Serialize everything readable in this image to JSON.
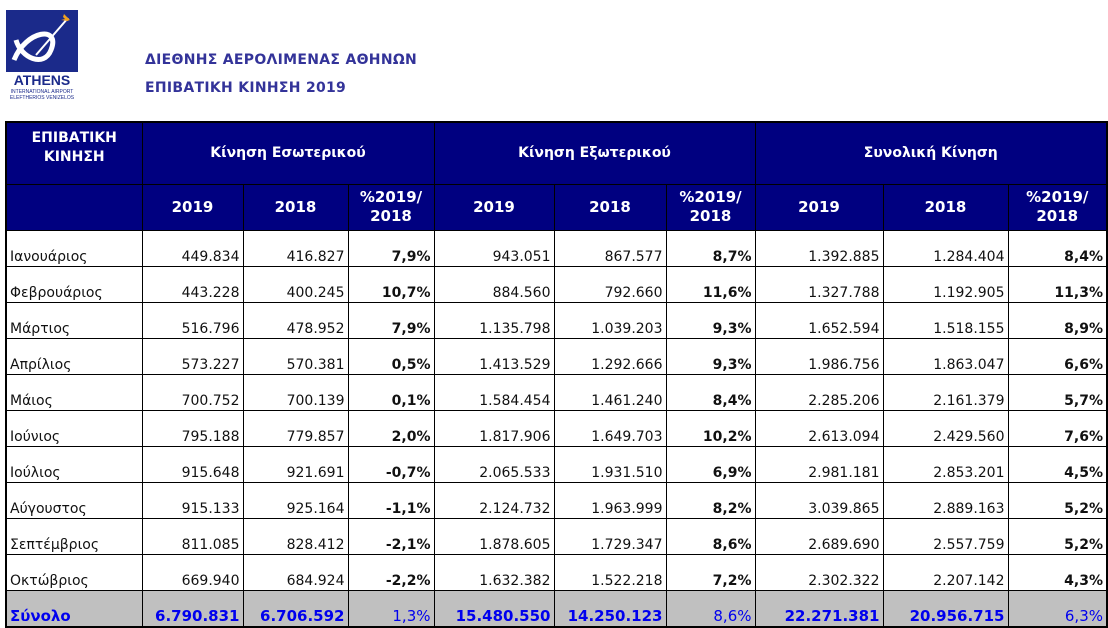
{
  "header": {
    "title": "ΔΙΕΘΝΗΣ ΑΕΡΟΛΙΜΕΝΑΣ ΑΘΗΝΩΝ",
    "subtitle": "ΕΠΙΒΑΤΙΚΗ ΚΙΝΗΣΗ 2019",
    "logo_text": "ATHENS INTERNATIONAL AIRPORT ELEFTHERIOS VENIZELOS"
  },
  "colors": {
    "header_bg": "#000080",
    "title": "#333399",
    "total_bg": "#c0c0c0",
    "total_text": "#0000ee"
  },
  "table": {
    "corner": "ΕΠΙΒΑΤΙΚΗ ΚΙΝΗΣΗ",
    "groups": [
      "Κίνηση Εσωτερικού",
      "Κίνηση Εξωτερικού",
      "Συνολική Κίνηση"
    ],
    "subheaders": [
      "2019",
      "2018",
      "%2019/ 2018"
    ],
    "rows": [
      [
        "Ιανουάριος",
        "449.834",
        "416.827",
        "7,9%",
        "943.051",
        "867.577",
        "8,7%",
        "1.392.885",
        "1.284.404",
        "8,4%"
      ],
      [
        "Φεβρουάριος",
        "443.228",
        "400.245",
        "10,7%",
        "884.560",
        "792.660",
        "11,6%",
        "1.327.788",
        "1.192.905",
        "11,3%"
      ],
      [
        "Μάρτιος",
        "516.796",
        "478.952",
        "7,9%",
        "1.135.798",
        "1.039.203",
        "9,3%",
        "1.652.594",
        "1.518.155",
        "8,9%"
      ],
      [
        "Απρίλιος",
        "573.227",
        "570.381",
        "0,5%",
        "1.413.529",
        "1.292.666",
        "9,3%",
        "1.986.756",
        "1.863.047",
        "6,6%"
      ],
      [
        "Μάιος",
        "700.752",
        "700.139",
        "0,1%",
        "1.584.454",
        "1.461.240",
        "8,4%",
        "2.285.206",
        "2.161.379",
        "5,7%"
      ],
      [
        "Ιούνιος",
        "795.188",
        "779.857",
        "2,0%",
        "1.817.906",
        "1.649.703",
        "10,2%",
        "2.613.094",
        "2.429.560",
        "7,6%"
      ],
      [
        "Ιούλιος",
        "915.648",
        "921.691",
        "-0,7%",
        "2.065.533",
        "1.931.510",
        "6,9%",
        "2.981.181",
        "2.853.201",
        "4,5%"
      ],
      [
        "Αύγουστος",
        "915.133",
        "925.164",
        "-1,1%",
        "2.124.732",
        "1.963.999",
        "8,2%",
        "3.039.865",
        "2.889.163",
        "5,2%"
      ],
      [
        "Σεπτέμβριος",
        "811.085",
        "828.412",
        "-2,1%",
        "1.878.605",
        "1.729.347",
        "8,6%",
        "2.689.690",
        "2.557.759",
        "5,2%"
      ],
      [
        "Οκτώβριος",
        "669.940",
        "684.924",
        "-2,2%",
        "1.632.382",
        "1.522.218",
        "7,2%",
        "2.302.322",
        "2.207.142",
        "4,3%"
      ]
    ],
    "total": [
      "Σύνολο",
      "6.790.831",
      "6.706.592",
      "1,3%",
      "15.480.550",
      "14.250.123",
      "8,6%",
      "22.271.381",
      "20.956.715",
      "6,3%"
    ]
  }
}
